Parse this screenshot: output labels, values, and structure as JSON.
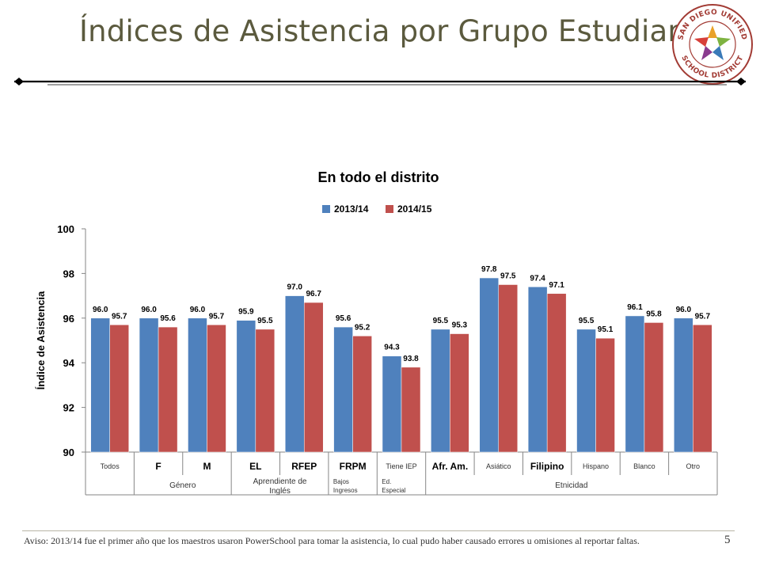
{
  "slide": {
    "title": "Índices de Asistencia por Grupo Estudiantil",
    "logo_text_top": "SAN DIEGO UNIFIED",
    "logo_text_bottom": "SCHOOL DISTRICT",
    "footnote": "Aviso: 2013/14 fue el primer año que los maestros usaron PowerSchool para tomar la asistencia, lo cual pudo haber causado errores u omisiones al reportar faltas.",
    "page_number": "5"
  },
  "colors": {
    "title": "#5b5a3e",
    "series_2013": "#4f81bd",
    "series_2014": "#c0504d",
    "rule": "#000000"
  },
  "chart_data": {
    "type": "bar",
    "title": "En todo el distrito",
    "ylabel": "Índice de Asistencia",
    "xlabel": "",
    "ylim": [
      90,
      100
    ],
    "yticks": [
      "90",
      "92",
      "94",
      "96",
      "98",
      "100"
    ],
    "legend_position": "top",
    "categories": [
      "Todos",
      "F",
      "M",
      "EL",
      "RFEP",
      "FRPM",
      "Tiene IEP",
      "Afr. Am.",
      "Asiático",
      "Filipino",
      "Hispano",
      "Blanco",
      "Otro"
    ],
    "category_bold": [
      false,
      true,
      true,
      true,
      true,
      true,
      false,
      true,
      false,
      true,
      false,
      false,
      false
    ],
    "series": [
      {
        "name": "2013/14",
        "color": "#4f81bd",
        "values": [
          96.0,
          96.0,
          96.0,
          95.9,
          97.0,
          95.6,
          94.3,
          95.5,
          97.8,
          97.4,
          95.5,
          96.1,
          96.0
        ],
        "labels": [
          "96.0",
          "96.0",
          "96.0",
          "95.9",
          "97.0",
          "95.6",
          "94.3",
          "95.5",
          "97.8",
          "97.4",
          "95.5",
          "96.1",
          "96.0"
        ]
      },
      {
        "name": "2014/15",
        "color": "#c0504d",
        "values": [
          95.7,
          95.6,
          95.7,
          95.5,
          96.7,
          95.2,
          93.8,
          95.3,
          97.5,
          97.1,
          95.1,
          95.8,
          95.7
        ],
        "labels": [
          "95.7",
          "95.6",
          "95.7",
          "95.5",
          "96.7",
          "95.2",
          "93.8",
          "95.3",
          "97.5",
          "97.1",
          "95.1",
          "95.8",
          "95.7"
        ]
      }
    ],
    "groups": [
      {
        "label": "",
        "span": [
          0,
          0
        ]
      },
      {
        "label": "Género",
        "span": [
          1,
          2
        ]
      },
      {
        "label": "Aprendiente de Inglés",
        "span": [
          3,
          4
        ]
      },
      {
        "label": "Bajos Ingresos",
        "span": [
          5,
          5
        ]
      },
      {
        "label": "Ed. Especial",
        "span": [
          6,
          6
        ]
      },
      {
        "label": "Etnicidad",
        "span": [
          7,
          12
        ]
      }
    ],
    "grid": false
  }
}
